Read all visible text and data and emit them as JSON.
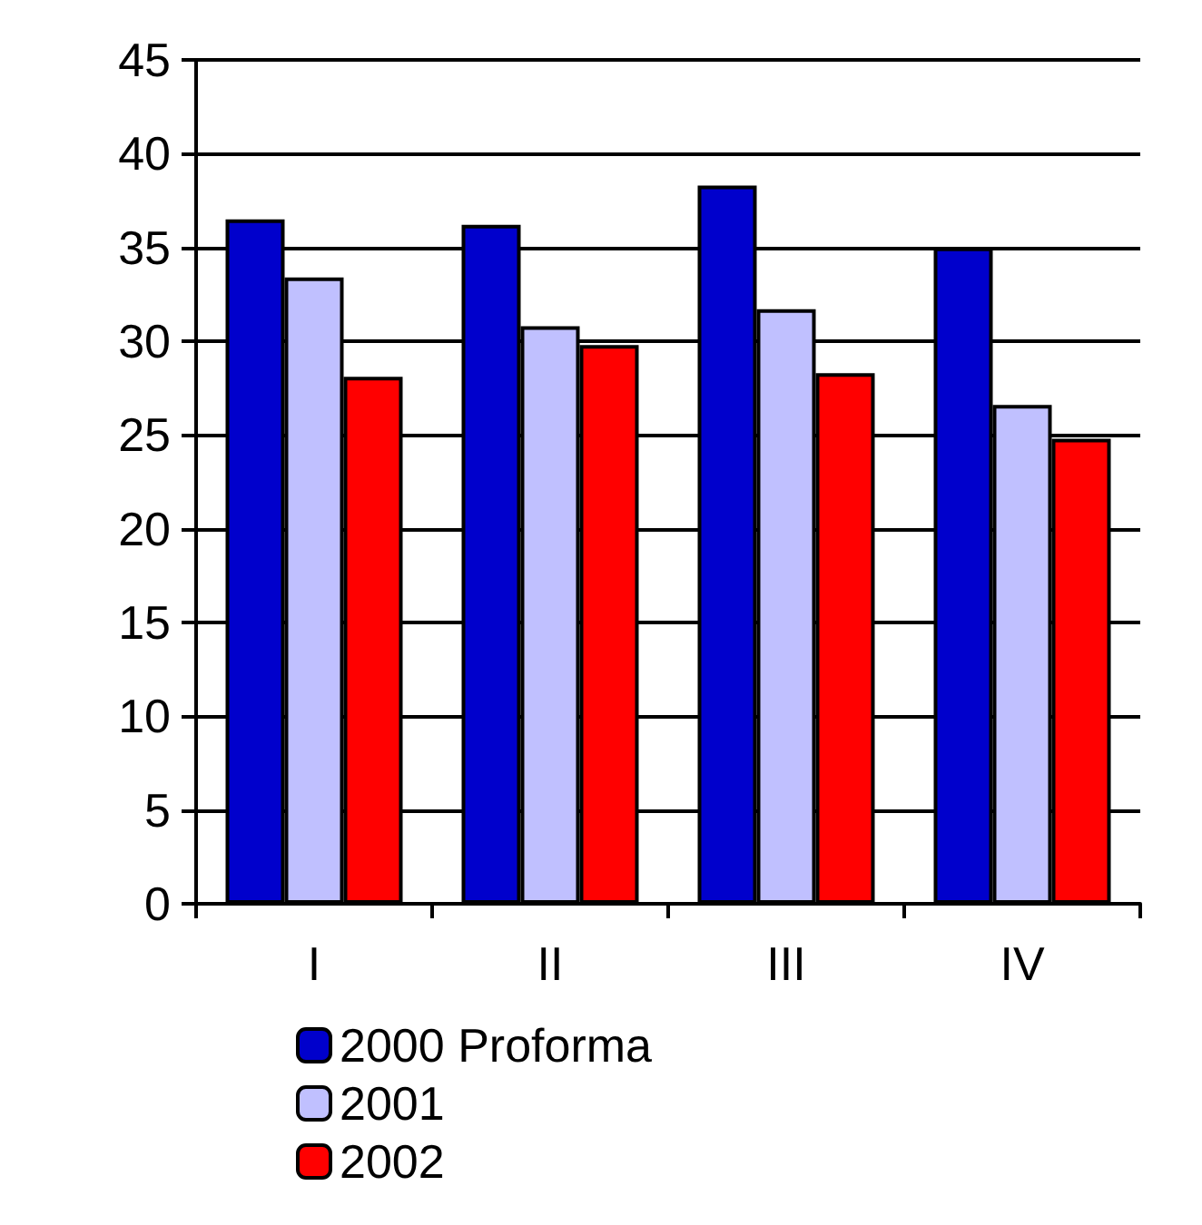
{
  "chart_data": {
    "type": "bar",
    "categories": [
      "I",
      "II",
      "III",
      "IV"
    ],
    "series": [
      {
        "name": "2000 Proforma",
        "color": "#0000cc",
        "values": [
          36.5,
          36.2,
          38.3,
          35.0
        ]
      },
      {
        "name": "2001",
        "color": "#c0c0ff",
        "values": [
          33.4,
          30.8,
          31.7,
          26.6
        ]
      },
      {
        "name": "2002",
        "color": "#ff0000",
        "values": [
          28.1,
          29.8,
          28.3,
          24.8
        ]
      }
    ],
    "ylim": [
      0,
      45
    ],
    "yticks": [
      0,
      5,
      10,
      15,
      20,
      25,
      30,
      35,
      40,
      45
    ],
    "grid": "y",
    "legend": "bottom"
  }
}
